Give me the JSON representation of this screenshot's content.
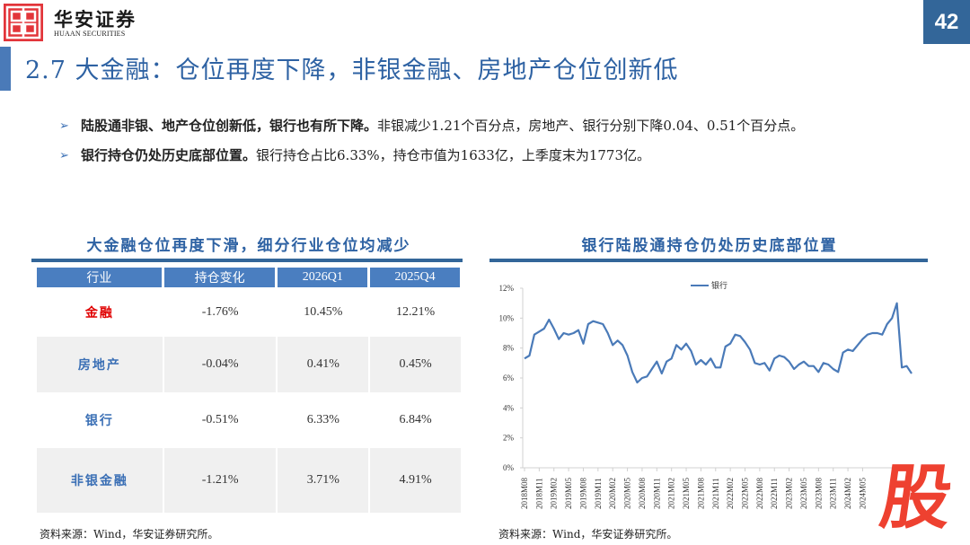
{
  "brand": {
    "name_cn": "华安证券",
    "name_en": "HUAAN SECURITIES",
    "logo_color": "#e2353a"
  },
  "page_number": "42",
  "title": "2.7 大金融：仓位再度下降，非银金融、房地产仓位创新低",
  "bullets": [
    {
      "bold": "陆股通非银、地产仓位创新低，银行也有所下降。",
      "text": "非银减少1.21个百分点，房地产、银行分别下降0.04、0.51个百分点。"
    },
    {
      "bold": "银行持仓仍处历史底部位置。",
      "text": "银行持仓占比6.33%，持仓市值为1633亿，上季度末为1773亿。"
    }
  ],
  "table_panel": {
    "title": "大金融仓位再度下滑，细分行业仓位均减少",
    "headers": [
      "行业",
      "持仓变化",
      "2026Q1",
      "2025Q4"
    ],
    "rows": [
      {
        "industry": "金融",
        "change": "-1.76%",
        "q1": "10.45%",
        "q4": "12.21%",
        "color": "#e00000"
      },
      {
        "industry": "房地产",
        "change": "-0.04%",
        "q1": "0.41%",
        "q4": "0.45%",
        "color": "#3a6fb5"
      },
      {
        "industry": "银行",
        "change": "-0.51%",
        "q1": "6.33%",
        "q4": "6.84%",
        "color": "#3a6fb5"
      },
      {
        "industry": "非银金融",
        "change": "-1.21%",
        "q1": "3.71%",
        "q4": "4.91%",
        "color": "#3a6fb5"
      }
    ],
    "source": "资料来源：Wind，华安证券研究所。"
  },
  "chart_panel": {
    "title": "银行陆股通持仓仍处历史底部位置",
    "source": "资料来源：Wind，华安证券研究所。"
  },
  "chart_data": {
    "type": "line",
    "title": "银行陆股通持仓仍处历史底部位置",
    "xlabel": "",
    "ylabel": "",
    "ylim": [
      0,
      12
    ],
    "yticks": [
      "0%",
      "2%",
      "4%",
      "6%",
      "8%",
      "10%",
      "12%"
    ],
    "xtick_labels": [
      "2018M08",
      "2018M11",
      "2019M02",
      "2019M05",
      "2019M08",
      "2019M11",
      "2020M02",
      "2020M05",
      "2020M08",
      "2020M11",
      "2021M02",
      "2021M05",
      "2021M08",
      "2021M11",
      "2022M02",
      "2022M05",
      "2022M08",
      "2022M11",
      "2023M02",
      "2023M05",
      "2023M08",
      "2023M11",
      "2024M02",
      "2024M05"
    ],
    "legend": {
      "position": "top-center",
      "entries": [
        "银行"
      ]
    },
    "grid": false,
    "series": [
      {
        "name": "银行",
        "color": "#4a7ab8",
        "values": [
          7.3,
          7.5,
          8.9,
          9.1,
          9.3,
          9.9,
          9.3,
          8.6,
          9.0,
          8.9,
          9.0,
          9.2,
          8.3,
          9.6,
          9.8,
          9.7,
          9.6,
          9.0,
          8.2,
          8.5,
          8.2,
          7.5,
          6.4,
          5.7,
          6.0,
          6.1,
          6.6,
          7.1,
          6.3,
          7.1,
          7.3,
          8.2,
          7.9,
          8.3,
          7.8,
          6.9,
          7.2,
          6.9,
          7.3,
          6.7,
          6.7,
          8.1,
          8.3,
          8.9,
          8.8,
          8.4,
          7.9,
          7.0,
          6.9,
          7.0,
          6.5,
          7.3,
          7.5,
          7.4,
          7.1,
          6.6,
          6.9,
          7.1,
          6.8,
          6.8,
          6.4,
          7.0,
          6.9,
          6.6,
          6.4,
          7.7,
          7.9,
          7.8,
          8.2,
          8.6,
          8.9,
          9.0,
          9.0,
          8.9,
          9.6,
          10.0,
          11.0,
          6.7,
          6.8,
          6.3
        ]
      }
    ]
  },
  "watermark": "股"
}
